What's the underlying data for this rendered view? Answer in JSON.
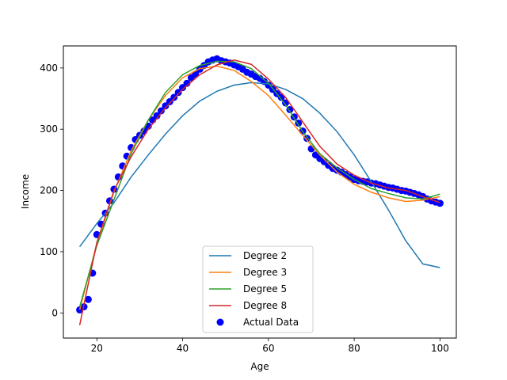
{
  "chart_data": {
    "type": "scatter",
    "title": "",
    "xlabel": "Age",
    "ylabel": "Income",
    "xlim": [
      12.2,
      103.8
    ],
    "ylim": [
      -41,
      436
    ],
    "x_ticks": [
      20,
      40,
      60,
      80,
      100
    ],
    "y_ticks": [
      0,
      100,
      200,
      300,
      400
    ],
    "grid": false,
    "legend_position": "lower center",
    "actual_data": {
      "name": "Actual Data",
      "color": "#0000ff",
      "x": [
        16,
        17,
        18,
        19,
        20,
        21,
        22,
        23,
        24,
        25,
        26,
        27,
        28,
        29,
        30,
        31,
        32,
        33,
        34,
        35,
        36,
        37,
        38,
        39,
        40,
        41,
        42,
        43,
        44,
        45,
        46,
        47,
        48,
        49,
        50,
        51,
        52,
        53,
        54,
        55,
        56,
        57,
        58,
        59,
        60,
        61,
        62,
        63,
        64,
        65,
        66,
        67,
        68,
        69,
        70,
        71,
        72,
        73,
        74,
        75,
        76,
        77,
        78,
        79,
        80,
        81,
        82,
        83,
        84,
        85,
        86,
        87,
        88,
        89,
        90,
        91,
        92,
        93,
        94,
        95,
        96,
        97,
        98,
        99,
        100
      ],
      "y": [
        5,
        10,
        22,
        65,
        128,
        145,
        163,
        183,
        202,
        222,
        240,
        256,
        270,
        283,
        290,
        297,
        305,
        315,
        322,
        330,
        338,
        345,
        352,
        360,
        368,
        375,
        384,
        390,
        398,
        404,
        410,
        413,
        415,
        412,
        410,
        408,
        405,
        402,
        398,
        393,
        390,
        386,
        383,
        378,
        372,
        365,
        358,
        352,
        343,
        332,
        320,
        310,
        297,
        285,
        268,
        258,
        252,
        247,
        241,
        236,
        233,
        230,
        226,
        222,
        218,
        216,
        215,
        214,
        212,
        211,
        209,
        207,
        205,
        204,
        202,
        200,
        199,
        197,
        195,
        193,
        190,
        186,
        183,
        181,
        179
      ]
    },
    "series": [
      {
        "name": "Degree 2",
        "color": "#1f77b4",
        "x": [
          16,
          20,
          24,
          28,
          32,
          36,
          40,
          44,
          48,
          52,
          56,
          60,
          64,
          68,
          72,
          76,
          80,
          84,
          88,
          92,
          96,
          100
        ],
        "y": [
          108,
          146,
          180,
          222,
          258,
          292,
          322,
          346,
          362,
          372,
          376,
          374,
          365,
          350,
          326,
          296,
          258,
          214,
          168,
          118,
          80,
          74
        ]
      },
      {
        "name": "Degree 3",
        "color": "#ff7f0e",
        "x": [
          16,
          20,
          24,
          28,
          32,
          36,
          40,
          44,
          48,
          52,
          56,
          60,
          64,
          68,
          72,
          76,
          80,
          84,
          88,
          92,
          96,
          100
        ],
        "y": [
          5,
          113,
          198,
          265,
          315,
          355,
          384,
          399,
          403,
          396,
          378,
          355,
          323,
          290,
          258,
          230,
          210,
          197,
          188,
          182,
          184,
          190
        ]
      },
      {
        "name": "Degree 5",
        "color": "#2ca02c",
        "x": [
          16,
          20,
          24,
          28,
          32,
          36,
          40,
          44,
          48,
          52,
          56,
          60,
          64,
          68,
          72,
          76,
          80,
          84,
          88,
          92,
          96,
          100
        ],
        "y": [
          10,
          110,
          185,
          260,
          315,
          360,
          389,
          404,
          411,
          410,
          399,
          375,
          340,
          296,
          260,
          237,
          218,
          203,
          195,
          188,
          186,
          194
        ]
      },
      {
        "name": "Degree 8",
        "color": "#d62728",
        "x": [
          16,
          20,
          24,
          28,
          32,
          36,
          40,
          44,
          48,
          52,
          56,
          60,
          64,
          68,
          72,
          76,
          80,
          84,
          88,
          92,
          96,
          100
        ],
        "y": [
          -20,
          115,
          200,
          255,
          300,
          335,
          365,
          389,
          405,
          413,
          406,
          382,
          352,
          312,
          272,
          243,
          225,
          212,
          204,
          200,
          190,
          180
        ]
      }
    ]
  },
  "legend": {
    "items": [
      "Degree 2",
      "Degree 3",
      "Degree 5",
      "Degree 8",
      "Actual Data"
    ]
  }
}
